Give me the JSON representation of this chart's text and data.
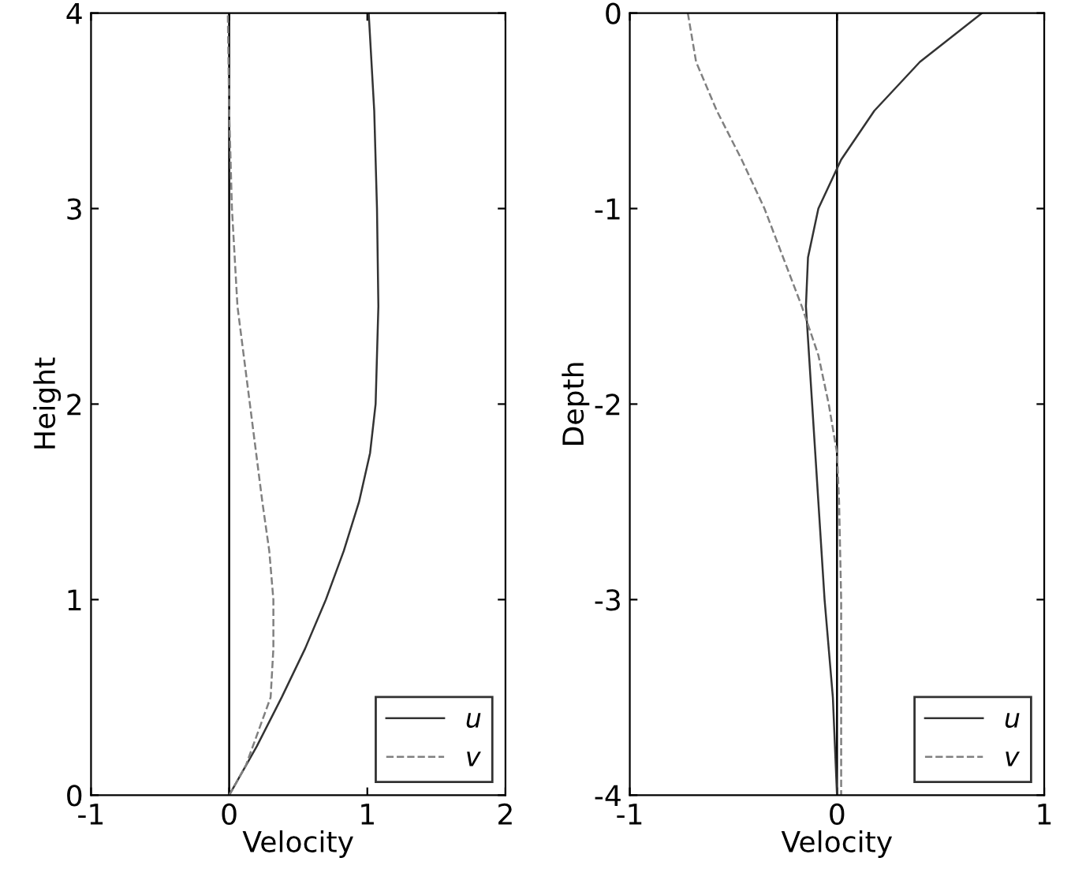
{
  "chart_data": [
    {
      "type": "line",
      "xlabel": "Velocity",
      "ylabel": "Height",
      "xlim": [
        -1,
        2
      ],
      "xticks": [
        -1,
        0,
        1,
        2
      ],
      "ylim": [
        0,
        4
      ],
      "yticks": [
        0,
        1,
        2,
        3,
        4
      ],
      "legend": "bottom right",
      "grid": false,
      "ref_lines": [
        {
          "axis": "x",
          "value": 0,
          "color": "#000000",
          "line_style": "solid"
        }
      ],
      "series": [
        {
          "name": "u",
          "color": "#333333",
          "line_style": "solid",
          "x": [
            0,
            0.2,
            0.38,
            0.55,
            0.7,
            0.83,
            0.94,
            1.02,
            1.06,
            1.08,
            1.07,
            1.05,
            1.01
          ],
          "values": [
            0,
            0.25,
            0.5,
            0.75,
            1,
            1.25,
            1.5,
            1.75,
            2,
            2.5,
            3,
            3.5,
            4
          ]
        },
        {
          "name": "v",
          "color": "#808080",
          "line_style": "dashed",
          "x": [
            0,
            0.12,
            0.3,
            0.32,
            0.32,
            0.29,
            0.24,
            0.15,
            0.06,
            0.02,
            0.0,
            -0.01
          ],
          "values": [
            0,
            0.15,
            0.5,
            0.75,
            1,
            1.25,
            1.5,
            2,
            2.5,
            3,
            3.5,
            4
          ]
        }
      ]
    },
    {
      "type": "line",
      "xlabel": "Velocity",
      "ylabel": "Depth",
      "xlim": [
        -1,
        1
      ],
      "xticks": [
        -1,
        0,
        1
      ],
      "ylim": [
        -4,
        0
      ],
      "yticks": [
        -4,
        -3,
        -2,
        -1,
        0
      ],
      "legend": "bottom right",
      "grid": false,
      "ref_lines": [
        {
          "axis": "x",
          "value": 0,
          "color": "#000000",
          "line_style": "solid"
        }
      ],
      "series": [
        {
          "name": "u",
          "color": "#333333",
          "line_style": "solid",
          "x": [
            0.7,
            0.4,
            0.18,
            0.02,
            -0.09,
            -0.14,
            -0.15,
            -0.12,
            -0.09,
            -0.06,
            -0.02,
            0
          ],
          "values": [
            0,
            -0.25,
            -0.5,
            -0.75,
            -1,
            -1.25,
            -1.5,
            -2,
            -2.5,
            -3,
            -3.5,
            -4
          ]
        },
        {
          "name": "v",
          "color": "#808080",
          "line_style": "dashed",
          "x": [
            -0.72,
            -0.68,
            -0.58,
            -0.46,
            -0.35,
            -0.26,
            -0.17,
            -0.09,
            -0.04,
            0,
            0.01,
            0.02,
            0.02
          ],
          "values": [
            0,
            -0.25,
            -0.5,
            -0.75,
            -1,
            -1.25,
            -1.5,
            -1.75,
            -2,
            -2.25,
            -2.5,
            -3,
            -4
          ]
        }
      ]
    }
  ]
}
